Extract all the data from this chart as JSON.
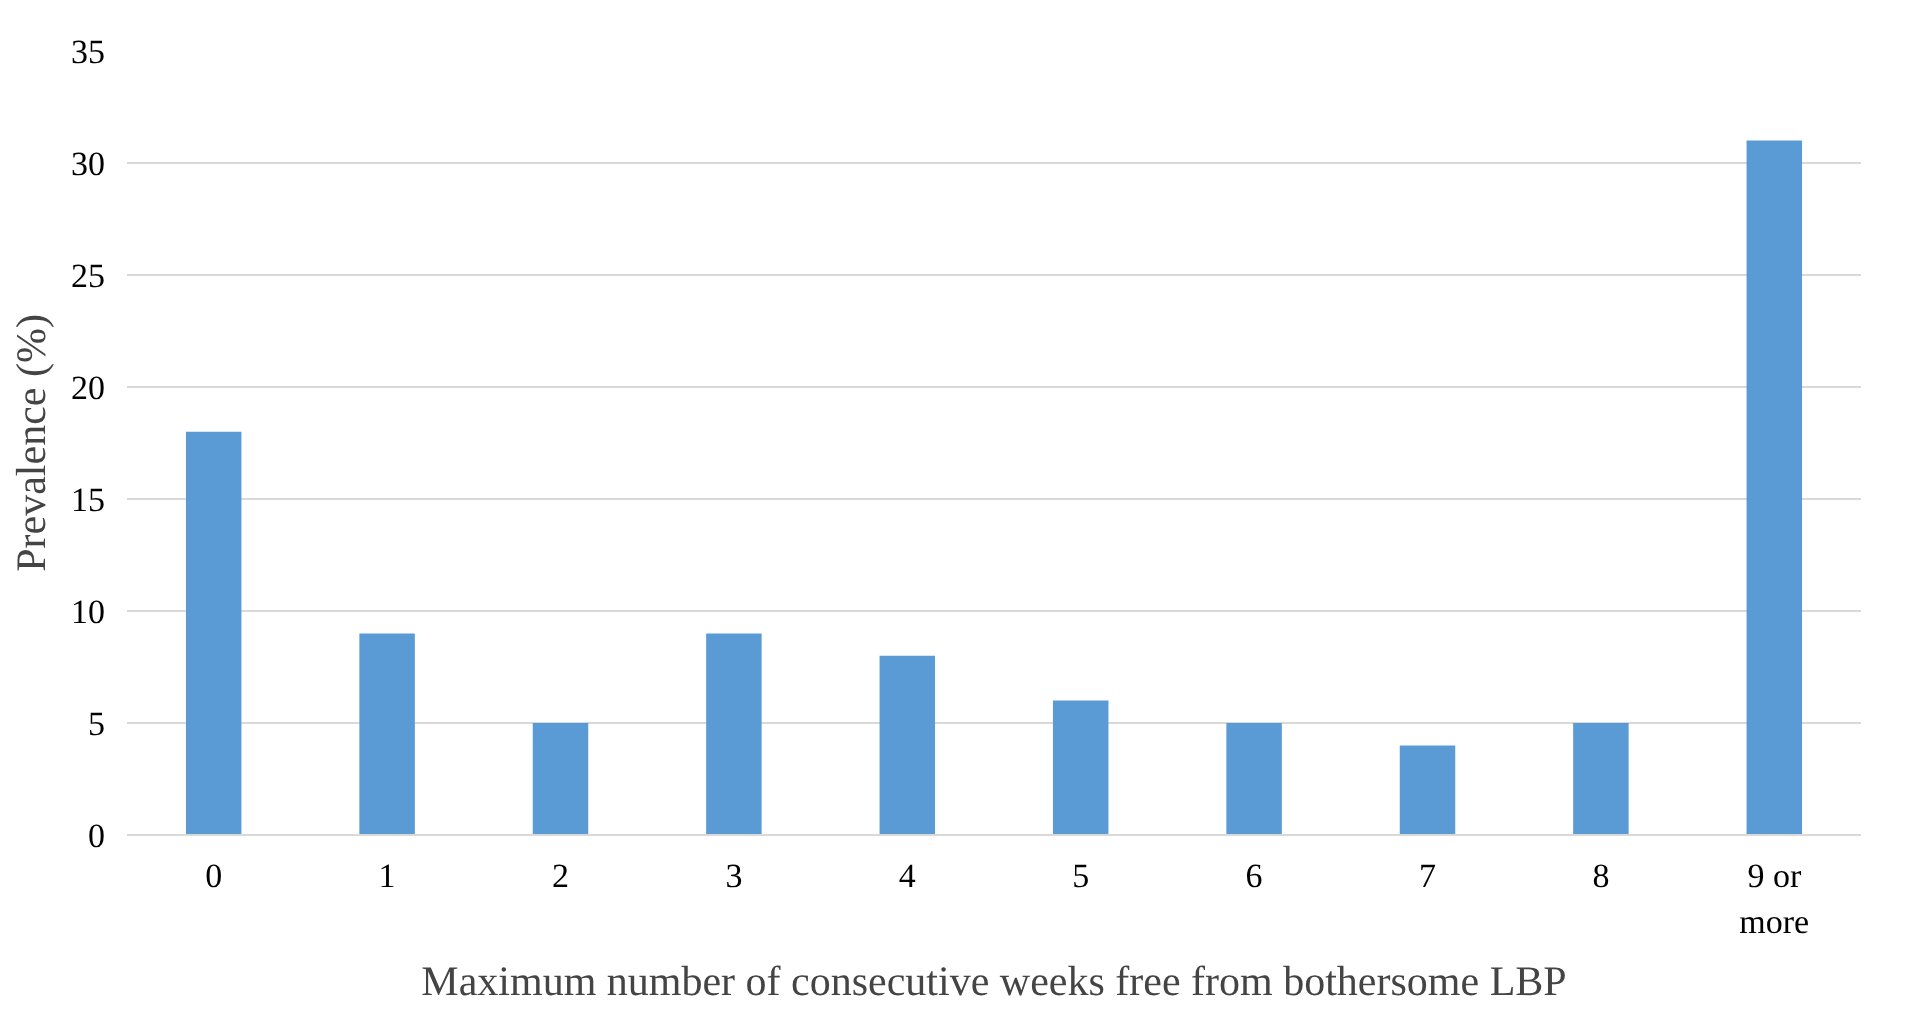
{
  "chart_data": {
    "type": "bar",
    "categories": [
      "0",
      "1",
      "2",
      "3",
      "4",
      "5",
      "6",
      "7",
      "8",
      "9 or more"
    ],
    "values": [
      18,
      9,
      5,
      9,
      8,
      6,
      5,
      4,
      5,
      31
    ],
    "color": "#5b9bd5",
    "xlabel": "Maximum number of consecutive weeks free from bothersome LBP",
    "ylabel": "Prevalence (%)",
    "ylim": [
      0,
      35
    ],
    "yticks": [
      0,
      5,
      10,
      15,
      20,
      25,
      30,
      35
    ],
    "grid": "y"
  }
}
